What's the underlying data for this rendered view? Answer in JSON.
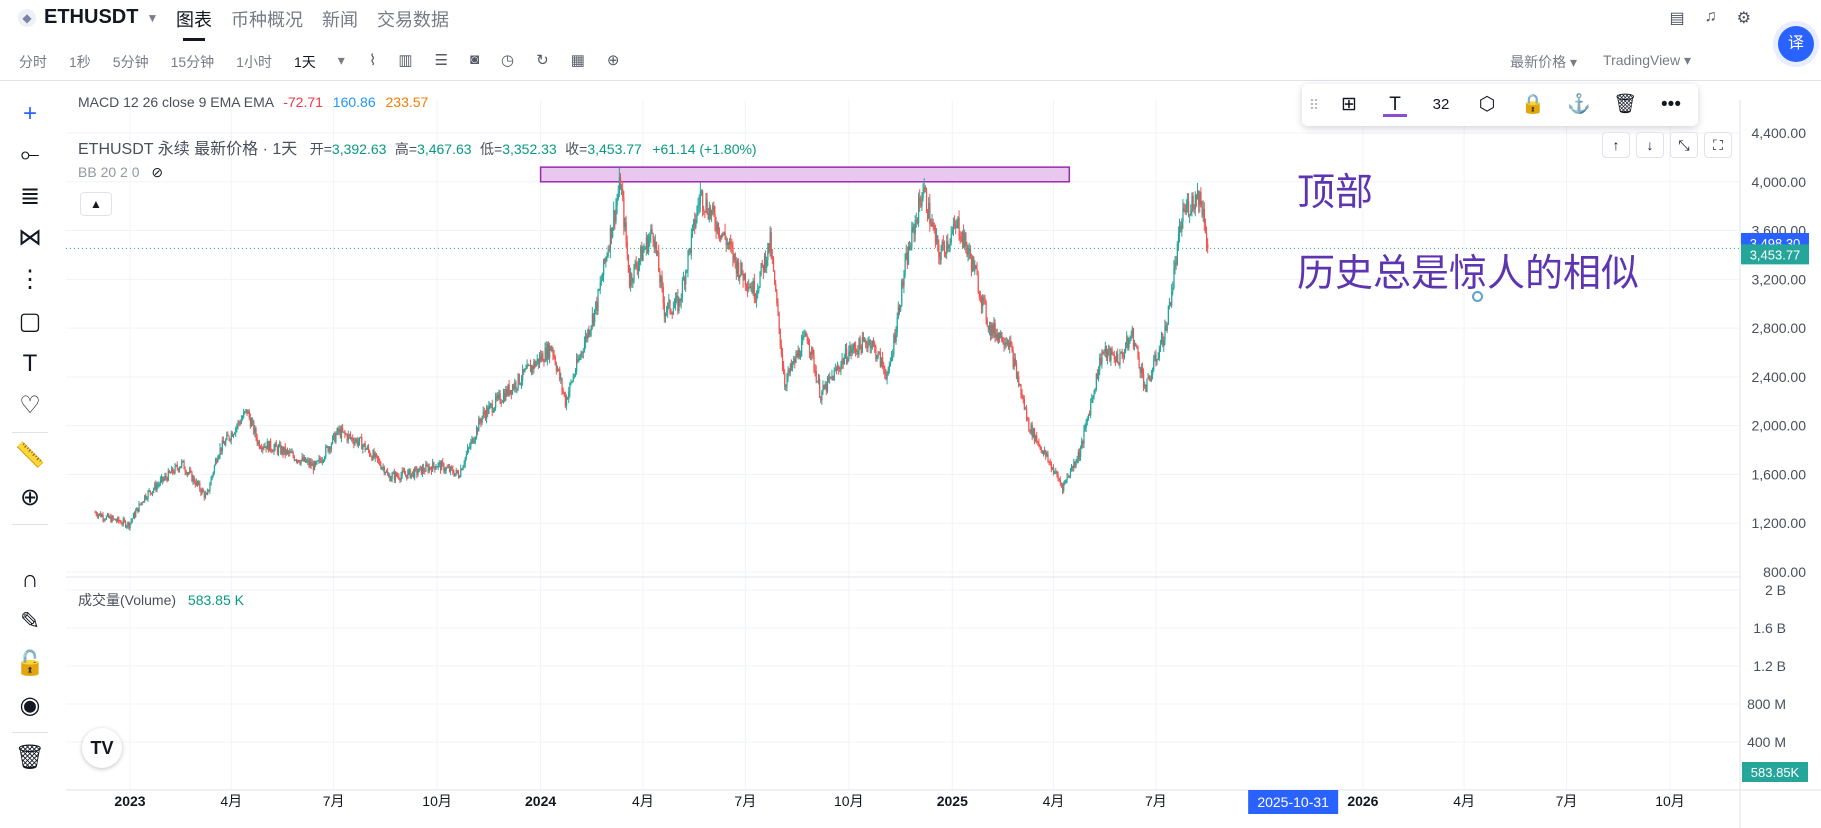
{
  "header": {
    "symbol": "ETHUSDT",
    "tabs": [
      "图表",
      "币种概况",
      "新闻",
      "交易数据"
    ],
    "active_tab": "图表"
  },
  "toolbar": {
    "intervals": [
      "分时",
      "1秒",
      "5分钟",
      "15分钟",
      "1小时",
      "1天"
    ],
    "selected_interval": "1天",
    "price_type": "最新价格",
    "provider": "TradingView"
  },
  "translate_label": "译",
  "legend": {
    "macd_label": "MACD 12 26 close 9 EMA EMA",
    "macd_values": [
      "-72.71",
      "160.86",
      "233.57"
    ],
    "macd_colors": [
      "#f23645",
      "#2196f3",
      "#f57c00"
    ],
    "title": "ETHUSDT 永续 最新价格 · 1天",
    "open_label": "开=",
    "open": "3,392.63",
    "high_label": "高=",
    "high": "3,467.63",
    "low_label": "低=",
    "low": "3,352.33",
    "close_label": "收=",
    "close": "3,453.77",
    "change": "+61.14 (+1.80%)",
    "bb_label": "BB 20 2 0",
    "volume_label": "成交量(Volume)",
    "volume_value": "583.85 K"
  },
  "drawing_toolbar": {
    "font_size": "32"
  },
  "tv_logo": "TV",
  "chart_data": {
    "type": "candlestick",
    "symbol": "ETHUSDT",
    "x_start": "2022-12-01",
    "x_end": "2026-12-31",
    "ylim": [
      800,
      4400
    ],
    "y_ticks": [
      "4,400.00",
      "4,000.00",
      "3,600.00",
      "3,200.00",
      "2,800.00",
      "2,400.00",
      "2,000.00",
      "1,600.00",
      "1,200.00",
      "800.00"
    ],
    "x_ticks": [
      {
        "date": "2023-01-01",
        "label": "2023",
        "bold": true
      },
      {
        "date": "2023-04-01",
        "label": "4月"
      },
      {
        "date": "2023-07-01",
        "label": "7月"
      },
      {
        "date": "2023-10-01",
        "label": "10月"
      },
      {
        "date": "2024-01-01",
        "label": "2024",
        "bold": true
      },
      {
        "date": "2024-04-01",
        "label": "4月"
      },
      {
        "date": "2024-07-01",
        "label": "7月"
      },
      {
        "date": "2024-10-01",
        "label": "10月"
      },
      {
        "date": "2025-01-01",
        "label": "2025",
        "bold": true
      },
      {
        "date": "2025-04-01",
        "label": "4月"
      },
      {
        "date": "2025-07-01",
        "label": "7月"
      },
      {
        "date": "2026-01-01",
        "label": "2026",
        "bold": true
      },
      {
        "date": "2026-04-01",
        "label": "4月"
      },
      {
        "date": "2026-07-01",
        "label": "7月"
      },
      {
        "date": "2026-10-01",
        "label": "10月"
      }
    ],
    "highlighted_date": {
      "date": "2025-10-31",
      "label": "2025-10-31"
    },
    "price_path": [
      [
        "2022-12-01",
        1290
      ],
      [
        "2022-12-10",
        1250
      ],
      [
        "2022-12-31",
        1190
      ],
      [
        "2023-01-14",
        1420
      ],
      [
        "2023-01-31",
        1560
      ],
      [
        "2023-02-16",
        1690
      ],
      [
        "2023-03-10",
        1410
      ],
      [
        "2023-03-20",
        1780
      ],
      [
        "2023-04-15",
        2120
      ],
      [
        "2023-04-25",
        1860
      ],
      [
        "2023-05-15",
        1800
      ],
      [
        "2023-06-15",
        1660
      ],
      [
        "2023-07-05",
        1950
      ],
      [
        "2023-07-25",
        1860
      ],
      [
        "2023-08-16",
        1640
      ],
      [
        "2023-08-18",
        1580
      ],
      [
        "2023-09-10",
        1610
      ],
      [
        "2023-10-01",
        1680
      ],
      [
        "2023-10-20",
        1600
      ],
      [
        "2023-11-10",
        2080
      ],
      [
        "2023-12-10",
        2350
      ],
      [
        "2024-01-11",
        2650
      ],
      [
        "2024-01-23",
        2200
      ],
      [
        "2024-02-20",
        3000
      ],
      [
        "2024-03-12",
        4000
      ],
      [
        "2024-03-20",
        3200
      ],
      [
        "2024-04-10",
        3600
      ],
      [
        "2024-04-20",
        2950
      ],
      [
        "2024-05-03",
        3000
      ],
      [
        "2024-05-22",
        3900
      ],
      [
        "2024-06-15",
        3500
      ],
      [
        "2024-06-24",
        3300
      ],
      [
        "2024-07-10",
        3100
      ],
      [
        "2024-07-23",
        3500
      ],
      [
        "2024-08-05",
        2350
      ],
      [
        "2024-08-25",
        2750
      ],
      [
        "2024-09-06",
        2250
      ],
      [
        "2024-09-30",
        2600
      ],
      [
        "2024-10-20",
        2700
      ],
      [
        "2024-11-05",
        2400
      ],
      [
        "2024-11-20",
        3300
      ],
      [
        "2024-12-06",
        3950
      ],
      [
        "2024-12-20",
        3400
      ],
      [
        "2025-01-06",
        3650
      ],
      [
        "2025-01-20",
        3300
      ],
      [
        "2025-02-03",
        2800
      ],
      [
        "2025-02-20",
        2700
      ],
      [
        "2025-03-10",
        2000
      ],
      [
        "2025-04-09",
        1500
      ],
      [
        "2025-04-25",
        1800
      ],
      [
        "2025-05-14",
        2600
      ],
      [
        "2025-05-30",
        2550
      ],
      [
        "2025-06-10",
        2750
      ],
      [
        "2025-06-22",
        2300
      ],
      [
        "2025-07-10",
        2800
      ],
      [
        "2025-07-25",
        3750
      ],
      [
        "2025-08-08",
        3900
      ],
      [
        "2025-08-13",
        3720
      ],
      [
        "2025-08-16",
        3453
      ]
    ],
    "last_high": "3,498.30",
    "last_price": "3,453.77",
    "volume_ticks": [
      "2 B",
      "1.6 B",
      "1.2 B",
      "800 M",
      "400 M"
    ],
    "volume_ylim": [
      0,
      2000000000
    ],
    "last_volume": "583.85K",
    "annotations": {
      "top_rect": {
        "date_start": "2024-01-01",
        "date_end": "2025-04-15",
        "price_low": 4000,
        "price_high": 4120
      },
      "label_top": "顶部",
      "label_history": "历史总是惊人的相似"
    }
  }
}
